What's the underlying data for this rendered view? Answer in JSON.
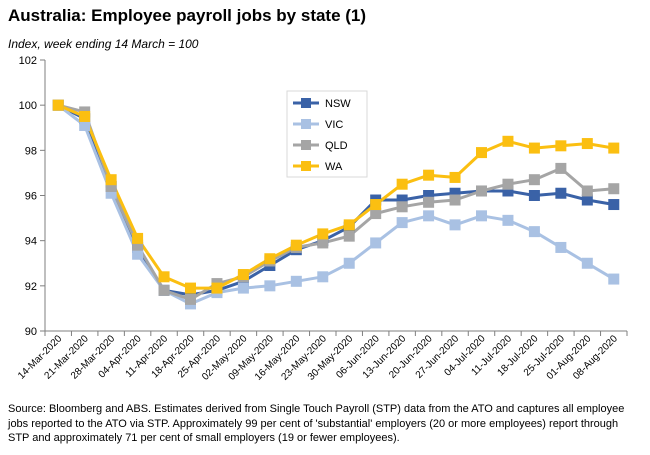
{
  "header": {
    "title": "Australia:  Employee payroll jobs by state (1)",
    "subtitle": "Index, week ending 14 March = 100"
  },
  "footer": {
    "source": "Source: Bloomberg and ABS.  Estimates derived from Single Touch Payroll (STP) data from the ATO and captures all employee jobs reported to the ATO via STP.  Approximately 99 per cent of 'substantial' employers (20 or more employees) report through STP and approximately 71 per cent of small employers (19 or fewer employees)."
  },
  "chart_data": {
    "type": "line",
    "title": "Australia:  Employee payroll jobs by state (1)",
    "subtitle": "Index, week ending 14 March = 100",
    "xlabel": "",
    "ylabel": "",
    "ylim": [
      90,
      102
    ],
    "yticks": [
      90,
      92,
      94,
      96,
      98,
      100,
      102
    ],
    "grid": false,
    "legend": "top-center",
    "categories": [
      "14-Mar-2020",
      "21-Mar-2020",
      "28-Mar-2020",
      "04-Apr-2020",
      "11-Apr-2020",
      "18-Apr-2020",
      "25-Apr-2020",
      "02-May-2020",
      "09-May-2020",
      "16-May-2020",
      "23-May-2020",
      "30-May-2020",
      "06-Jun-2020",
      "13-Jun-2020",
      "20-Jun-2020",
      "27-Jun-2020",
      "04-Jul-2020",
      "11-Jul-2020",
      "18-Jul-2020",
      "25-Jul-2020",
      "01-Aug-2020",
      "08-Aug-2020"
    ],
    "series": [
      {
        "name": "NSW",
        "color": "#3a62a7",
        "marker": "square",
        "values": [
          100.0,
          99.4,
          96.4,
          93.7,
          91.8,
          91.6,
          91.8,
          92.2,
          92.9,
          93.6,
          94.0,
          94.6,
          95.8,
          95.8,
          96.0,
          96.1,
          96.2,
          96.2,
          96.0,
          96.1,
          95.8,
          95.6
        ]
      },
      {
        "name": "VIC",
        "color": "#a9c1e3",
        "marker": "square",
        "values": [
          100.0,
          99.1,
          96.1,
          93.4,
          91.8,
          91.2,
          91.7,
          91.9,
          92.0,
          92.2,
          92.4,
          93.0,
          93.9,
          94.8,
          95.1,
          94.7,
          95.1,
          94.9,
          94.4,
          93.7,
          93.0,
          92.3
        ]
      },
      {
        "name": "QLD",
        "color": "#a5a5a5",
        "marker": "square",
        "values": [
          100.0,
          99.7,
          96.4,
          93.8,
          91.8,
          91.4,
          92.1,
          92.4,
          93.1,
          93.7,
          93.9,
          94.2,
          95.2,
          95.5,
          95.7,
          95.8,
          96.2,
          96.5,
          96.7,
          97.2,
          96.2,
          96.3
        ]
      },
      {
        "name": "WA",
        "color": "#fbbf11",
        "marker": "square",
        "values": [
          100.0,
          99.5,
          96.7,
          94.1,
          92.4,
          91.9,
          91.9,
          92.5,
          93.2,
          93.8,
          94.3,
          94.7,
          95.6,
          96.5,
          96.9,
          96.8,
          97.9,
          98.4,
          98.1,
          98.2,
          98.3,
          98.1
        ]
      }
    ]
  }
}
